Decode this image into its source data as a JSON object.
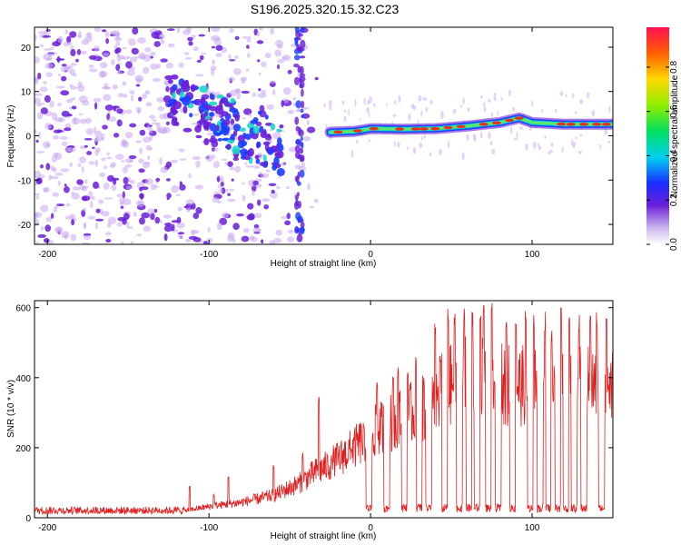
{
  "title": "S196.2025.320.15.32.C23",
  "colors": {
    "line": "#e02020",
    "axis": "#000000",
    "background": "#ffffff",
    "scatter_light": "#c9a8f0",
    "scatter_dark": "#6a1ed8",
    "ridge_edge": "#1a3cff",
    "ridge_mid": "#18d8c8",
    "ridge_core": "#e83020"
  },
  "chart_data": [
    {
      "type": "heatmap",
      "name": "spectrogram",
      "xlabel": "Height of straight line (km)",
      "ylabel": "Frequency (Hz)",
      "xlim": [
        -208,
        150
      ],
      "ylim": [
        -24.5,
        24.5
      ],
      "xticks": [
        -200,
        -100,
        0,
        100
      ],
      "yticks": [
        -20,
        -10,
        0,
        10,
        20
      ],
      "xtick_labels": [
        "-200",
        "-100",
        "0",
        "100"
      ],
      "ytick_labels": [
        "-20",
        "-10",
        "0",
        "10",
        "20"
      ],
      "colorbar": {
        "label": "Normalized spectral amplitude",
        "range": [
          0,
          0.98
        ],
        "ticks": [
          0.0,
          0.2,
          0.4,
          0.6,
          0.8
        ],
        "tick_labels": [
          "0.0",
          "0.2",
          "0.4",
          "0.6",
          "0.8"
        ]
      },
      "ridge": {
        "x_start": -25,
        "x_end": 150,
        "freq": [
          [
            -25,
            0.8
          ],
          [
            -10,
            1.0
          ],
          [
            0,
            1.6
          ],
          [
            20,
            1.5
          ],
          [
            40,
            1.6
          ],
          [
            60,
            2.2
          ],
          [
            80,
            3.0
          ],
          [
            92,
            4.0
          ],
          [
            100,
            3.0
          ],
          [
            120,
            2.6
          ],
          [
            150,
            2.6
          ]
        ]
      }
    },
    {
      "type": "line",
      "name": "snr",
      "xlabel": "Height of straight line (km)",
      "ylabel": "SNR (10 * v/v)",
      "xlim": [
        -208,
        150
      ],
      "ylim": [
        0,
        620
      ],
      "xticks": [
        -200,
        -100,
        0,
        100
      ],
      "yticks": [
        0,
        200,
        400,
        600
      ],
      "xtick_labels": [
        "-200",
        "-100",
        "0",
        "100"
      ],
      "ytick_labels": [
        "0",
        "200",
        "400",
        "600"
      ],
      "envelope": [
        [
          -208,
          20
        ],
        [
          -120,
          22
        ],
        [
          -110,
          30
        ],
        [
          -100,
          40
        ],
        [
          -80,
          55
        ],
        [
          -60,
          80
        ],
        [
          -45,
          120
        ],
        [
          -35,
          160
        ],
        [
          -25,
          190
        ],
        [
          -10,
          250
        ],
        [
          0,
          300
        ],
        [
          10,
          330
        ],
        [
          20,
          360
        ],
        [
          30,
          380
        ],
        [
          40,
          410
        ],
        [
          45,
          460
        ],
        [
          55,
          490
        ],
        [
          70,
          520
        ],
        [
          80,
          480
        ],
        [
          90,
          470
        ],
        [
          100,
          470
        ],
        [
          120,
          470
        ],
        [
          150,
          470
        ]
      ],
      "dips": [
        [
          -1,
          2
        ],
        [
          10,
          2
        ],
        [
          21,
          2
        ],
        [
          30,
          2
        ],
        [
          36,
          2
        ],
        [
          46,
          2
        ],
        [
          55,
          2
        ],
        [
          61,
          2
        ],
        [
          66,
          2
        ],
        [
          73,
          2
        ],
        [
          79,
          2
        ],
        [
          88,
          2
        ],
        [
          99,
          2
        ],
        [
          105,
          2
        ],
        [
          110,
          2
        ],
        [
          116,
          2
        ],
        [
          121,
          2
        ],
        [
          126,
          2
        ],
        [
          132,
          2
        ],
        [
          143,
          2
        ]
      ],
      "spikes": [
        [
          -112,
          90
        ],
        [
          -97,
          70
        ],
        [
          -88,
          120
        ],
        [
          -60,
          150
        ],
        [
          -42,
          190
        ],
        [
          -32,
          350
        ],
        [
          -24,
          180
        ],
        [
          -12,
          210
        ],
        [
          -4,
          260
        ],
        [
          4,
          400
        ],
        [
          14,
          420
        ],
        [
          17,
          440
        ],
        [
          23,
          430
        ],
        [
          28,
          460
        ],
        [
          33,
          410
        ],
        [
          40,
          570
        ],
        [
          43,
          480
        ],
        [
          48,
          600
        ],
        [
          52,
          590
        ],
        [
          58,
          610
        ],
        [
          63,
          600
        ],
        [
          68,
          590
        ],
        [
          70,
          620
        ],
        [
          75,
          615
        ],
        [
          84,
          600
        ],
        [
          90,
          590
        ],
        [
          96,
          595
        ],
        [
          101,
          580
        ],
        [
          108,
          590
        ],
        [
          112,
          540
        ],
        [
          118,
          600
        ],
        [
          123,
          590
        ],
        [
          129,
          580
        ],
        [
          136,
          610
        ],
        [
          140,
          590
        ],
        [
          146,
          600
        ]
      ]
    }
  ]
}
